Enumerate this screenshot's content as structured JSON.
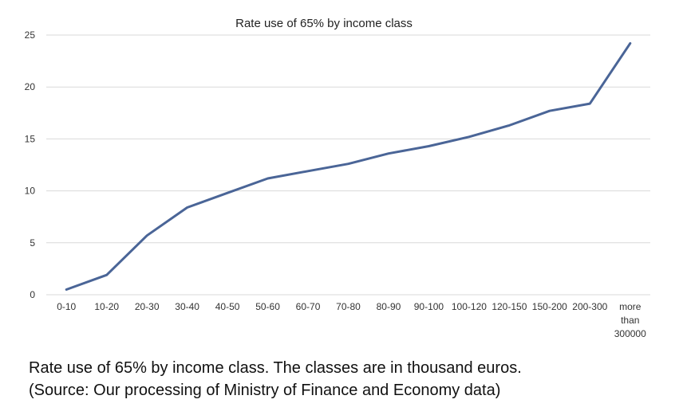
{
  "chart_data": {
    "type": "line",
    "title": "Rate use of 65% by income class",
    "categories": [
      "0-10",
      "10-20",
      "20-30",
      "30-40",
      "40-50",
      "50-60",
      "60-70",
      "70-80",
      "80-90",
      "90-100",
      "100-120",
      "120-150",
      "150-200",
      "200-300",
      "more than 300000"
    ],
    "series": [
      {
        "values": [
          0.5,
          1.9,
          5.7,
          8.4,
          9.8,
          11.2,
          11.9,
          12.6,
          13.6,
          14.3,
          15.2,
          16.3,
          17.7,
          18.4,
          24.2
        ],
        "color": "#4a6597"
      }
    ],
    "yticks": [
      "0",
      "5",
      "10",
      "15",
      "20",
      "25"
    ],
    "ylim": [
      0,
      25
    ],
    "xlabel": "",
    "ylabel": "",
    "grid": true,
    "legend": "none"
  },
  "caption": {
    "line1": "Rate use of 65% by income class. The classes are in thousand euros.",
    "line2": "(Source: Our processing of Ministry of Finance and Economy data)"
  }
}
